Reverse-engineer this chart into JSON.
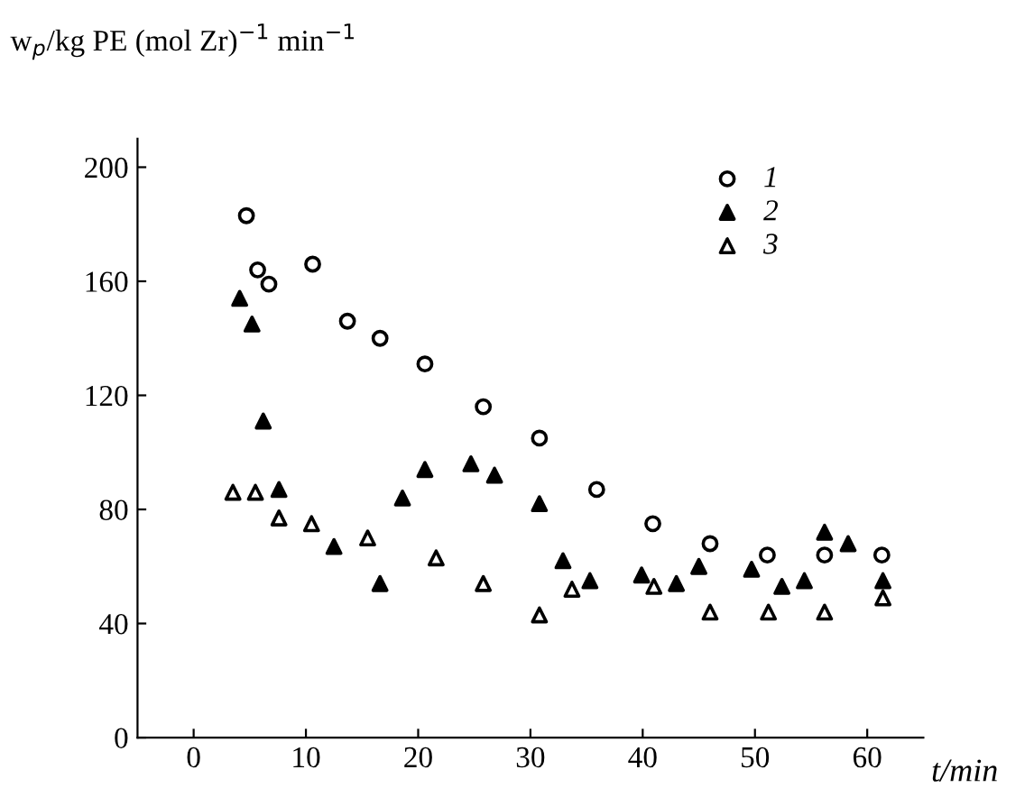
{
  "chart_data": {
    "type": "scatter",
    "ylabel": "w$_{p}$/kg PE (mol Zr)$^{−1}$ min$^{−1}$",
    "xlabel": "t/min",
    "xlim": [
      -5,
      65
    ],
    "xticks": [
      0,
      10,
      20,
      30,
      40,
      50,
      60
    ],
    "ylim": [
      0,
      210
    ],
    "yticks": [
      0,
      40,
      80,
      120,
      160,
      200
    ],
    "grid": false,
    "legend": "top right",
    "series": [
      {
        "name": "1",
        "color": "#ffffff",
        "marker": "circle",
        "x": [
          4.7,
          5.7,
          6.7,
          10.6,
          13.7,
          16.6,
          20.6,
          25.8,
          30.8,
          35.9,
          40.9,
          46.0,
          51.1,
          56.2,
          61.3
        ],
        "values": [
          183,
          164,
          159,
          166,
          146,
          140,
          131,
          116,
          105,
          87,
          75,
          68,
          64,
          64,
          64
        ]
      },
      {
        "name": "2",
        "color": "#000000",
        "marker": "triangle",
        "x": [
          4.1,
          5.2,
          6.2,
          7.6,
          12.5,
          16.6,
          18.6,
          20.6,
          24.7,
          26.8,
          30.8,
          32.9,
          35.3,
          39.9,
          43.0,
          45.0,
          49.7,
          52.4,
          54.4,
          56.2,
          58.3,
          61.4
        ],
        "values": [
          154,
          145,
          111,
          87,
          67,
          54,
          84,
          94,
          96,
          92,
          82,
          62,
          55,
          57,
          54,
          60,
          59,
          53,
          55,
          72,
          68,
          55
        ]
      },
      {
        "name": "3",
        "color": "#ffffff",
        "marker": "triangle",
        "x": [
          3.5,
          5.5,
          7.6,
          10.5,
          15.5,
          21.6,
          25.8,
          30.8,
          33.7,
          41.0,
          46.0,
          51.2,
          56.2,
          61.4
        ],
        "values": [
          86,
          86,
          77,
          75,
          70,
          63,
          54,
          43,
          52,
          53,
          44,
          44,
          44,
          49
        ]
      }
    ]
  }
}
